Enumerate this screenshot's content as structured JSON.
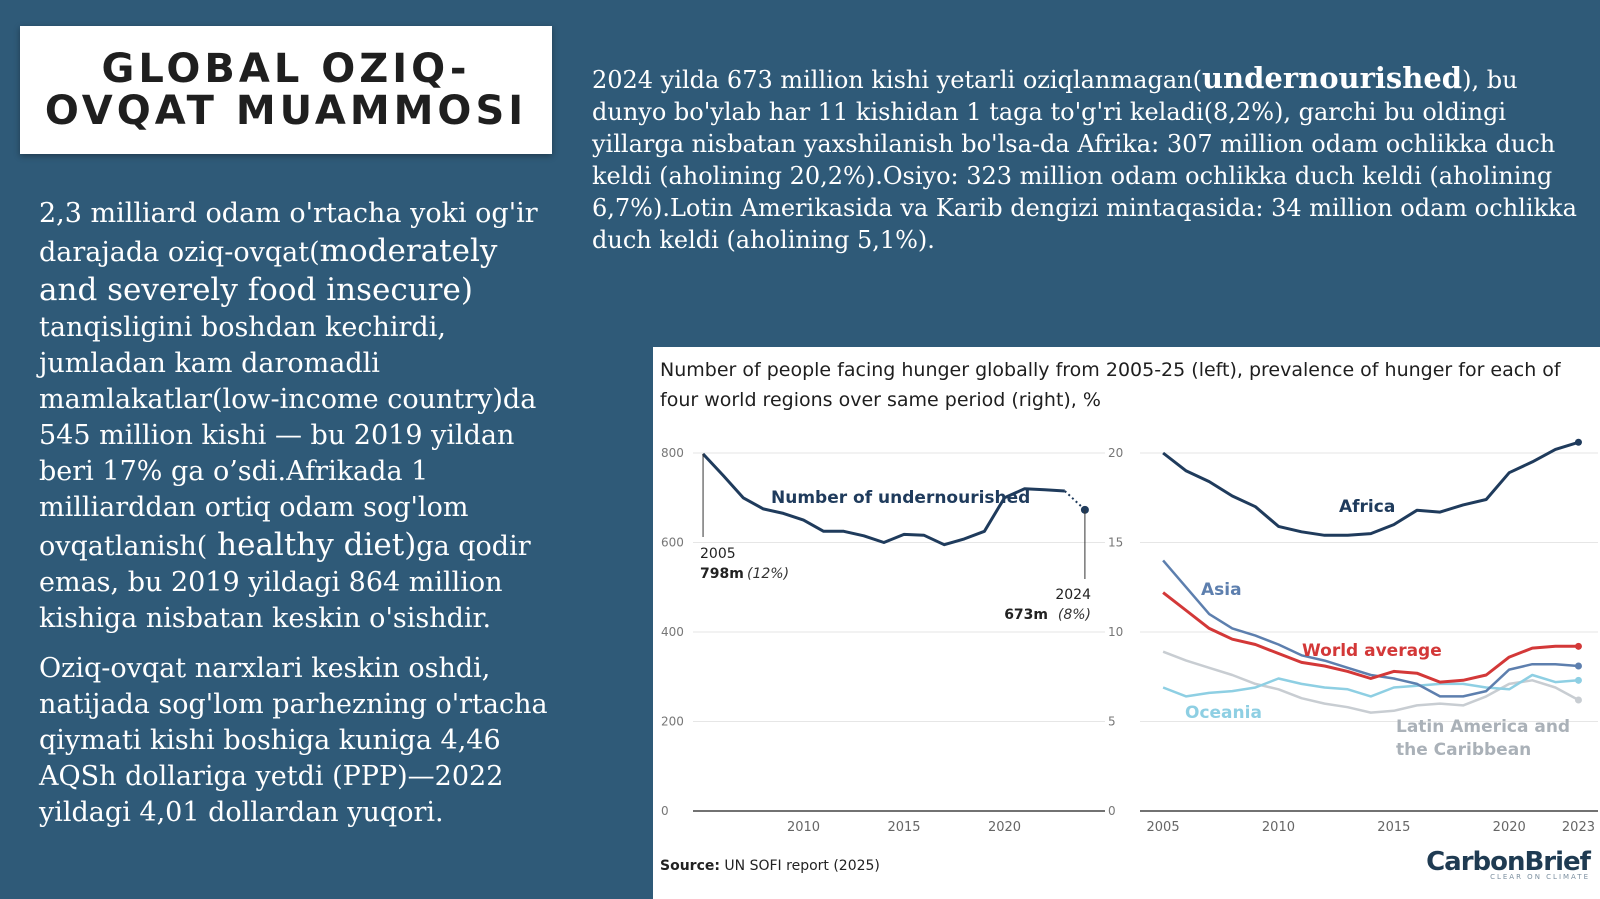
{
  "title": "GLOBAL OZIQ-OVQAT MUAMMOSI",
  "left_paragraph_1": {
    "part1": "2,3 milliard odam o'rtacha yoki og'ir darajada oziq-ovqat(",
    "part2": "moderately and severely food insecure)",
    "part3": " tanqisligini boshdan kechirdi, jumladan kam daromadli mamlakatlar(low-income country)da 545 million kishi — bu 2019 yildan beri 17% ga o’sdi.Afrikada 1 milliarddan ortiq odam sog'lom ovqatlanish(",
    "part4": " healthy diet)",
    "part5": "ga qodir emas, bu 2019 yildagi 864 million kishiga nisbatan keskin o'sishdir."
  },
  "left_paragraph_2": "Oziq-ovqat narxlari keskin oshdi, natijada sog'lom parhezning o'rtacha qiymati kishi boshiga kuniga 4,46 AQSh dollariga yetdi (PPP)—2022 yildagi 4,01 dollardan yuqori.",
  "right_paragraph": {
    "part1": "2024 yilda 673 million kishi yetarli oziqlanmagan(",
    "bold": "undernourished",
    "part2": "), bu dunyo bo'ylab har 11 kishidan 1 taga to'g'ri keladi(8,2%), garchi bu oldingi yillarga nisbatan yaxshilanish bo'lsa-da Afrika: 307 million odam ochlikka duch keldi (aholining 20,2%).Osiyo: 323 million odam ochlikka duch keldi (aholining 6,7%).Lotin Amerikasida va Karib dengizi mintaqasida: 34 million odam ochlikka duch keldi (aholining 5,1%)."
  },
  "chart_title": "Number of people facing hunger globally from 2005-25 (left), prevalence of hunger for each of four world regions over same period (right), %",
  "source_label": "Source:",
  "source_text": " UN SOFI report (2025)",
  "brand": "CarbonBrief",
  "brand_tagline": "CLEAR ON CLIMATE",
  "chart_data": [
    {
      "type": "line",
      "title": "",
      "ylim": [
        0,
        800
      ],
      "yticks": [
        "0",
        "200",
        "400",
        "600",
        "800"
      ],
      "xticks": [
        "2010",
        "2015",
        "2020"
      ],
      "series": [
        {
          "name": "Number of undernourished",
          "color": "#1f3b5c",
          "x": [
            2005,
            2006,
            2007,
            2008,
            2009,
            2010,
            2011,
            2012,
            2013,
            2014,
            2015,
            2016,
            2017,
            2018,
            2019,
            2020,
            2021,
            2022,
            2023,
            2024
          ],
          "y": [
            798,
            750,
            700,
            675,
            665,
            650,
            625,
            625,
            615,
            600,
            618,
            616,
            595,
            608,
            625,
            700,
            720,
            718,
            715,
            673
          ]
        }
      ],
      "annotations": [
        {
          "year": "2005",
          "value": "798m",
          "pct": "(12%)"
        },
        {
          "year": "2024",
          "value": "673m",
          "pct": "(8%)"
        }
      ]
    },
    {
      "type": "line",
      "title": "",
      "ylim": [
        0,
        20
      ],
      "yticks": [
        "0",
        "5",
        "10",
        "15",
        "20"
      ],
      "xticks": [
        "2005",
        "2010",
        "2015",
        "2020",
        "2023"
      ],
      "series": [
        {
          "name": "Africa",
          "color": "#1f3b5c",
          "x": [
            2005,
            2006,
            2007,
            2008,
            2009,
            2010,
            2011,
            2012,
            2013,
            2014,
            2015,
            2016,
            2017,
            2018,
            2019,
            2020,
            2021,
            2022,
            2023
          ],
          "y": [
            20.0,
            19.0,
            18.4,
            17.6,
            17.0,
            15.9,
            15.6,
            15.4,
            15.4,
            15.5,
            16.0,
            16.8,
            16.7,
            17.1,
            17.4,
            18.9,
            19.5,
            20.2,
            20.6
          ]
        },
        {
          "name": "Asia",
          "color": "#5d7fae",
          "x": [
            2005,
            2006,
            2007,
            2008,
            2009,
            2010,
            2011,
            2012,
            2013,
            2014,
            2015,
            2016,
            2017,
            2018,
            2019,
            2020,
            2021,
            2022,
            2023
          ],
          "y": [
            14.0,
            12.5,
            11.0,
            10.2,
            9.8,
            9.3,
            8.7,
            8.4,
            8.0,
            7.6,
            7.4,
            7.1,
            6.4,
            6.4,
            6.7,
            7.9,
            8.2,
            8.2,
            8.1
          ]
        },
        {
          "name": "World average",
          "color": "#d33838",
          "x": [
            2005,
            2006,
            2007,
            2008,
            2009,
            2010,
            2011,
            2012,
            2013,
            2014,
            2015,
            2016,
            2017,
            2018,
            2019,
            2020,
            2021,
            2022,
            2023
          ],
          "y": [
            12.2,
            11.2,
            10.2,
            9.6,
            9.3,
            8.8,
            8.3,
            8.1,
            7.8,
            7.4,
            7.8,
            7.7,
            7.2,
            7.3,
            7.6,
            8.6,
            9.1,
            9.2,
            9.2
          ]
        },
        {
          "name": "Oceania",
          "color": "#8ecfe3",
          "x": [
            2005,
            2006,
            2007,
            2008,
            2009,
            2010,
            2011,
            2012,
            2013,
            2014,
            2015,
            2016,
            2017,
            2018,
            2019,
            2020,
            2021,
            2022,
            2023
          ],
          "y": [
            6.9,
            6.4,
            6.6,
            6.7,
            6.9,
            7.4,
            7.1,
            6.9,
            6.8,
            6.4,
            6.9,
            7.0,
            7.1,
            7.1,
            6.9,
            6.8,
            7.6,
            7.2,
            7.3
          ]
        },
        {
          "name": "Latin America and the Caribbean",
          "color": "#c8cdd2",
          "x": [
            2005,
            2006,
            2007,
            2008,
            2009,
            2010,
            2011,
            2012,
            2013,
            2014,
            2015,
            2016,
            2017,
            2018,
            2019,
            2020,
            2021,
            2022,
            2023
          ],
          "y": [
            8.9,
            8.4,
            8.0,
            7.6,
            7.1,
            6.8,
            6.3,
            6.0,
            5.8,
            5.5,
            5.6,
            5.9,
            6.0,
            5.9,
            6.4,
            7.1,
            7.3,
            6.9,
            6.2
          ]
        }
      ]
    }
  ]
}
